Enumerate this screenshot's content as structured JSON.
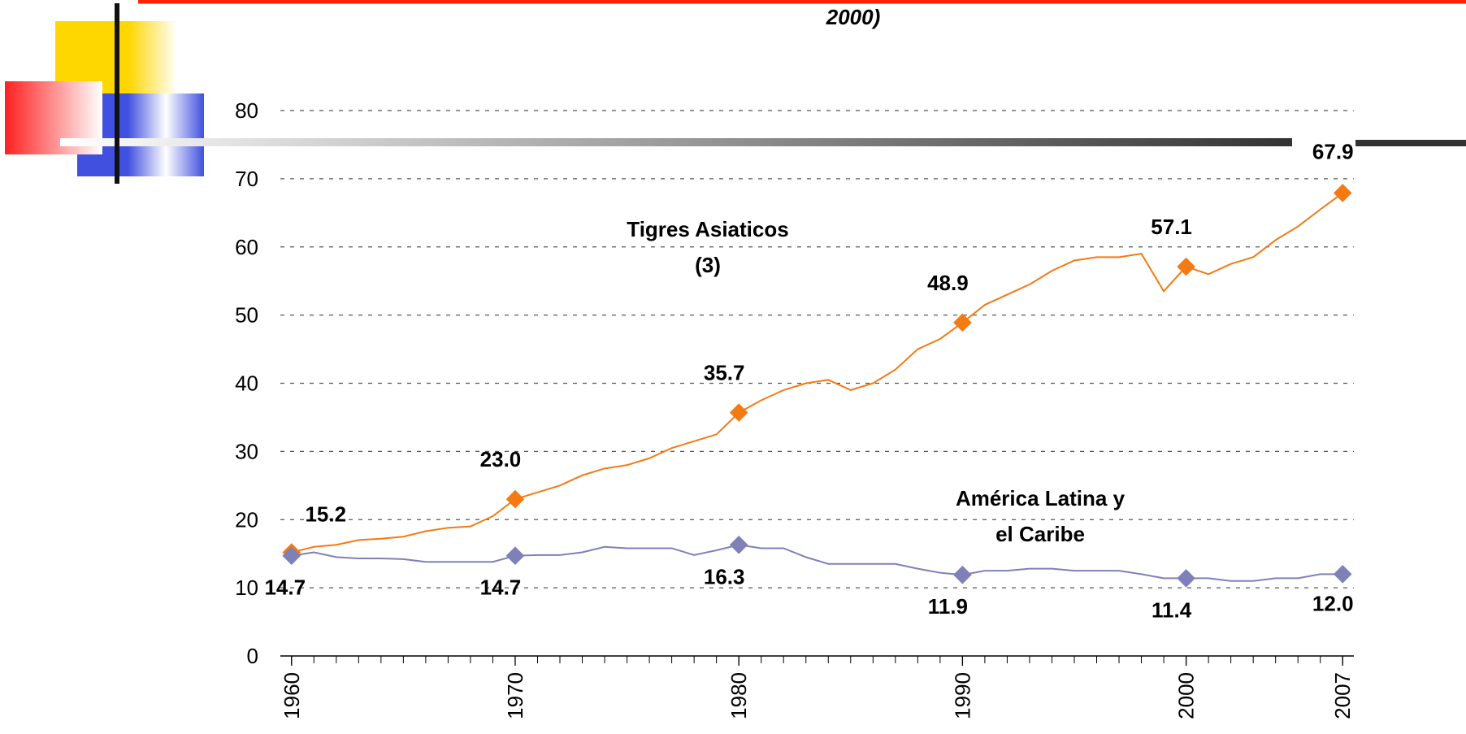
{
  "chart_data": {
    "type": "line",
    "title": "2000)",
    "x": [
      1960,
      1961,
      1962,
      1963,
      1964,
      1965,
      1966,
      1967,
      1968,
      1969,
      1970,
      1971,
      1972,
      1973,
      1974,
      1975,
      1976,
      1977,
      1978,
      1979,
      1980,
      1981,
      1982,
      1983,
      1984,
      1985,
      1986,
      1987,
      1988,
      1989,
      1990,
      1991,
      1992,
      1993,
      1994,
      1995,
      1996,
      1997,
      1998,
      1999,
      2000,
      2001,
      2002,
      2003,
      2004,
      2005,
      2006,
      2007
    ],
    "xlim": [
      1959.5,
      2007.5
    ],
    "xticks": [
      1960,
      1970,
      1980,
      1990,
      2000,
      2007
    ],
    "ylim": [
      0,
      80
    ],
    "yticks": [
      0,
      10,
      20,
      30,
      40,
      50,
      60,
      70,
      80
    ],
    "grid": true,
    "series": [
      {
        "name": "Tigres Asiaticos",
        "name_note": "(3)",
        "color": "#f47a14",
        "values": [
          15.2,
          16,
          16.3,
          17,
          17.2,
          17.5,
          18.3,
          18.8,
          19,
          20.5,
          23.0,
          24,
          25,
          26.5,
          27.5,
          28,
          29,
          30.5,
          31.5,
          32.5,
          35.7,
          37.5,
          39,
          40,
          40.5,
          39,
          40,
          42,
          45,
          46.5,
          48.9,
          51.5,
          53,
          54.5,
          56.5,
          58,
          58.5,
          58.5,
          59,
          53.5,
          57.1,
          56,
          57.5,
          58.5,
          61,
          63,
          65.5,
          67.9
        ],
        "value_labels": [
          "15.2",
          null,
          null,
          null,
          null,
          null,
          null,
          null,
          null,
          null,
          "23.0",
          null,
          null,
          null,
          null,
          null,
          null,
          null,
          null,
          null,
          "35.7",
          null,
          null,
          null,
          null,
          null,
          null,
          null,
          null,
          null,
          "48.9",
          null,
          null,
          null,
          null,
          null,
          null,
          null,
          null,
          null,
          "57.1",
          null,
          null,
          null,
          null,
          null,
          null,
          "67.9"
        ]
      },
      {
        "name": "América Latina y",
        "name_note": "el Caribe",
        "color": "#8080b8",
        "values": [
          14.7,
          15.2,
          14.5,
          14.3,
          14.3,
          14.2,
          13.8,
          13.8,
          13.8,
          13.8,
          14.7,
          14.8,
          14.8,
          15.2,
          16,
          15.8,
          15.8,
          15.8,
          14.8,
          15.5,
          16.3,
          15.8,
          15.8,
          14.5,
          13.5,
          13.5,
          13.5,
          13.5,
          12.8,
          12.2,
          11.9,
          12.5,
          12.5,
          12.8,
          12.8,
          12.5,
          12.5,
          12.5,
          12,
          11.4,
          11.4,
          11.4,
          11,
          11,
          11.4,
          11.4,
          12,
          12.0
        ],
        "value_labels": [
          "14.7",
          null,
          null,
          null,
          null,
          null,
          null,
          null,
          null,
          null,
          "14.7",
          null,
          null,
          null,
          null,
          null,
          null,
          null,
          null,
          null,
          "16.3",
          null,
          null,
          null,
          null,
          null,
          null,
          null,
          null,
          null,
          "11.9",
          null,
          null,
          null,
          null,
          null,
          null,
          null,
          null,
          null,
          "11.4",
          null,
          null,
          null,
          null,
          null,
          null,
          "12.0"
        ]
      }
    ]
  }
}
